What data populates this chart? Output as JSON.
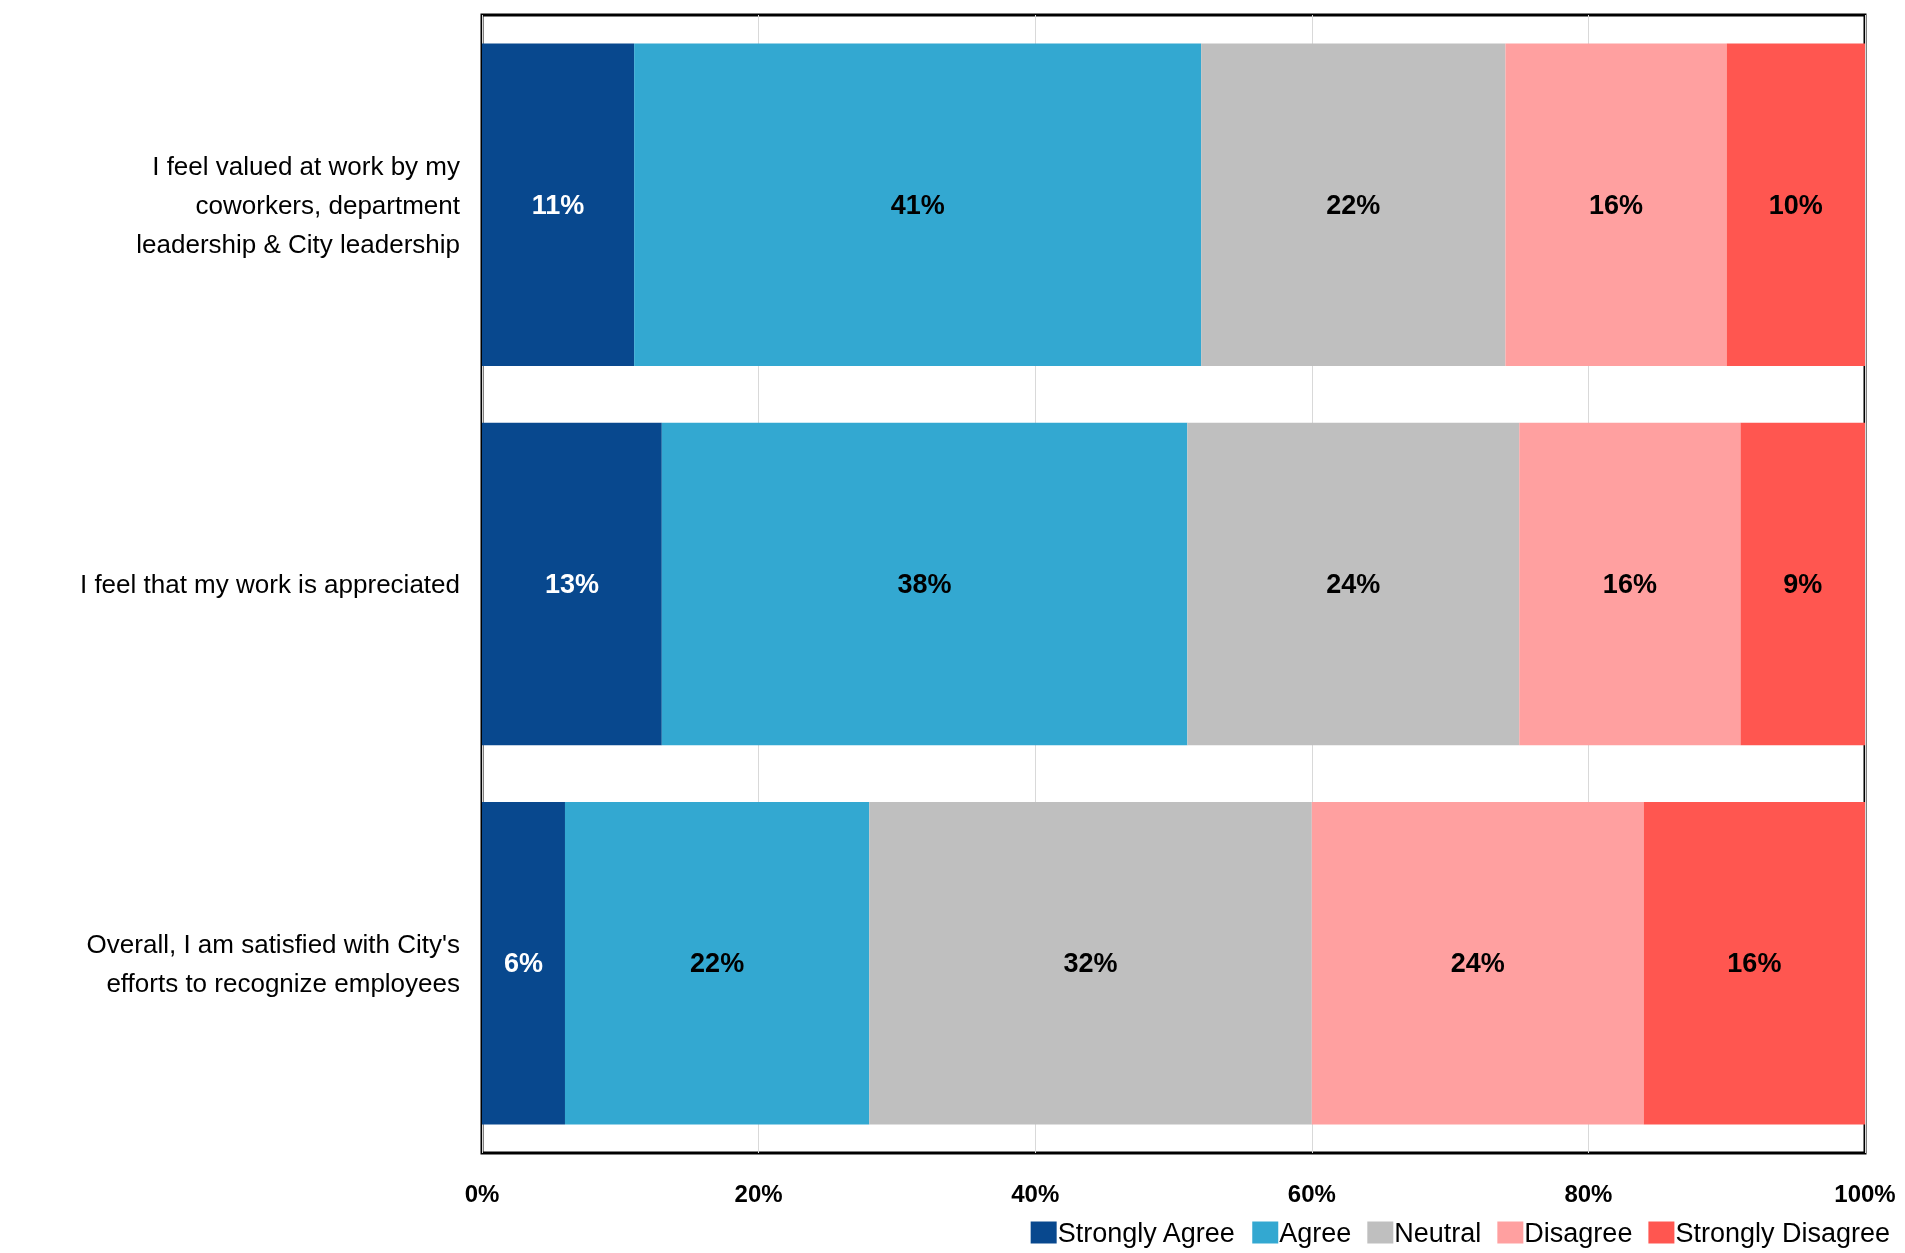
{
  "chart_data": {
    "type": "bar",
    "orientation": "horizontal",
    "stacked": true,
    "categories": [
      "I feel valued at work by my\ncoworkers, department\nleadership & City leadership",
      "I feel that my work is appreciated",
      "Overall, I am satisfied with City's\nefforts to recognize employees"
    ],
    "series": [
      {
        "name": "Strongly Agree",
        "color": "#08488e",
        "values": [
          11,
          13,
          6
        ],
        "value_labels": [
          "11%",
          "13%",
          "6%"
        ]
      },
      {
        "name": "Agree",
        "color": "#33a8d1",
        "values": [
          41,
          38,
          22
        ],
        "value_labels": [
          "41%",
          "38%",
          "22%"
        ]
      },
      {
        "name": "Neutral",
        "color": "#bfbfbf",
        "values": [
          22,
          24,
          32
        ],
        "value_labels": [
          "22%",
          "24%",
          "32%"
        ]
      },
      {
        "name": "Disagree",
        "color": "#ffa0a0",
        "values": [
          16,
          16,
          24
        ],
        "value_labels": [
          "16%",
          "16%",
          "24%"
        ]
      },
      {
        "name": "Strongly Disagree",
        "color": "#ff5650",
        "values": [
          10,
          9,
          16
        ],
        "value_labels": [
          "10%",
          "9%",
          "16%"
        ]
      }
    ],
    "xlim": [
      0,
      100
    ],
    "xticks": [
      {
        "value": 0,
        "label": "0%"
      },
      {
        "value": 20,
        "label": "20%"
      },
      {
        "value": 40,
        "label": "40%"
      },
      {
        "value": 60,
        "label": "60%"
      },
      {
        "value": 80,
        "label": "80%"
      },
      {
        "value": 100,
        "label": "100%"
      }
    ],
    "grid": "x",
    "legend": "bottom right"
  }
}
